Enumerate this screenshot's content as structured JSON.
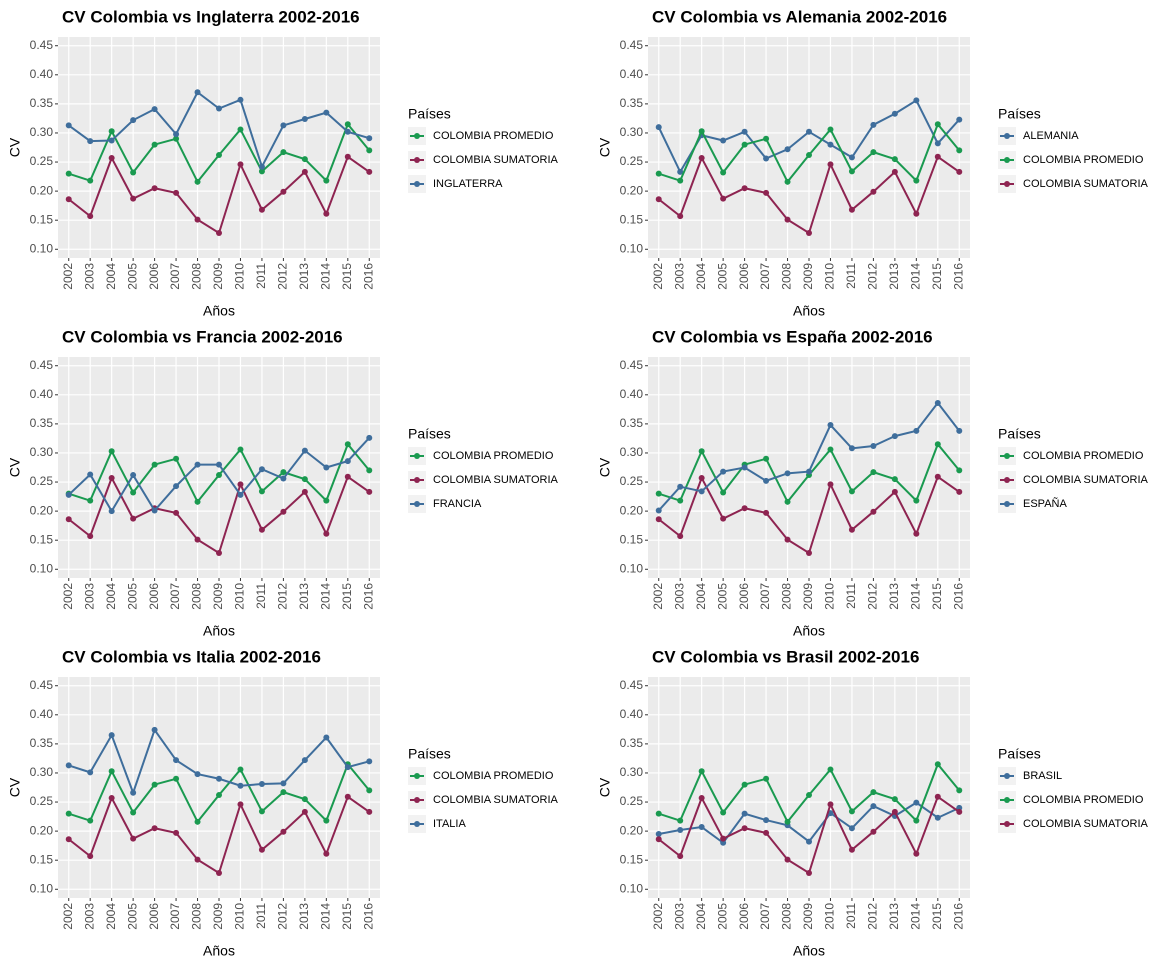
{
  "chart_data": [
    {
      "type": "line",
      "title": "CV Colombia vs Inglaterra 2002-2016",
      "x_label": "Años",
      "y_label": "CV",
      "legend_title": "Países",
      "legend": "right",
      "grid": true,
      "categories": [
        "2002",
        "2003",
        "2004",
        "2005",
        "2006",
        "2007",
        "2008",
        "2009",
        "2010",
        "2011",
        "2012",
        "2013",
        "2014",
        "2015",
        "2016"
      ],
      "ylim": [
        0.085,
        0.465
      ],
      "yticks": [
        {
          "value": 0.1,
          "label": "0.10"
        },
        0.15,
        {
          "value": 0.2,
          "label": "0.20"
        },
        0.25,
        {
          "value": 0.3,
          "label": "0.30"
        },
        0.35,
        {
          "value": 0.4,
          "label": "0.40"
        },
        0.45
      ],
      "series": [
        {
          "name": "COLOMBIA PROMEDIO",
          "color": "#1a9a50",
          "values": [
            0.23,
            0.218,
            0.303,
            0.232,
            0.28,
            0.29,
            0.216,
            0.262,
            0.306,
            0.234,
            0.267,
            0.255,
            0.218,
            0.315,
            0.27
          ]
        },
        {
          "name": "COLOMBIA SUMATORIA",
          "color": "#8e2451",
          "values": [
            0.186,
            0.157,
            0.257,
            0.187,
            0.205,
            0.197,
            0.151,
            0.128,
            0.246,
            0.168,
            0.199,
            0.233,
            0.161,
            0.259,
            0.233
          ]
        },
        {
          "name": "INGLATERRA",
          "color": "#3f6e9c",
          "values": [
            0.313,
            0.286,
            0.287,
            0.322,
            0.341,
            0.298,
            0.37,
            0.342,
            0.357,
            0.242,
            0.313,
            0.324,
            0.335,
            0.302,
            0.291
          ]
        }
      ]
    },
    {
      "type": "line",
      "title": "CV Colombia vs Alemania 2002-2016",
      "x_label": "Años",
      "y_label": "CV",
      "legend_title": "Países",
      "legend": "right",
      "grid": true,
      "categories": [
        "2002",
        "2003",
        "2004",
        "2005",
        "2006",
        "2007",
        "2008",
        "2009",
        "2010",
        "2011",
        "2012",
        "2013",
        "2014",
        "2015",
        "2016"
      ],
      "ylim": [
        0.085,
        0.465
      ],
      "yticks": [
        {
          "value": 0.1,
          "label": "0.10"
        },
        0.15,
        {
          "value": 0.2,
          "label": "0.20"
        },
        0.25,
        {
          "value": 0.3,
          "label": "0.30"
        },
        0.35,
        {
          "value": 0.4,
          "label": "0.40"
        },
        0.45
      ],
      "series": [
        {
          "name": "ALEMANIA",
          "color": "#3f6e9c",
          "values": [
            0.31,
            0.233,
            0.296,
            0.287,
            0.302,
            0.256,
            0.272,
            0.302,
            0.28,
            0.258,
            0.314,
            0.333,
            0.356,
            0.282,
            0.323
          ]
        },
        {
          "name": "COLOMBIA PROMEDIO",
          "color": "#1a9a50",
          "values": [
            0.23,
            0.218,
            0.303,
            0.232,
            0.28,
            0.29,
            0.216,
            0.262,
            0.306,
            0.234,
            0.267,
            0.255,
            0.218,
            0.315,
            0.27
          ]
        },
        {
          "name": "COLOMBIA SUMATORIA",
          "color": "#8e2451",
          "values": [
            0.186,
            0.157,
            0.257,
            0.187,
            0.205,
            0.197,
            0.151,
            0.128,
            0.246,
            0.168,
            0.199,
            0.233,
            0.161,
            0.259,
            0.233
          ]
        }
      ]
    },
    {
      "type": "line",
      "title": "CV Colombia vs Francia 2002-2016",
      "x_label": "Años",
      "y_label": "CV",
      "legend_title": "Países",
      "legend": "right",
      "grid": true,
      "categories": [
        "2002",
        "2003",
        "2004",
        "2005",
        "2006",
        "2007",
        "2008",
        "2009",
        "2010",
        "2011",
        "2012",
        "2013",
        "2014",
        "2015",
        "2016"
      ],
      "ylim": [
        0.085,
        0.465
      ],
      "yticks": [
        {
          "value": 0.1,
          "label": "0.10"
        },
        0.15,
        {
          "value": 0.2,
          "label": "0.20"
        },
        0.25,
        {
          "value": 0.3,
          "label": "0.30"
        },
        0.35,
        {
          "value": 0.4,
          "label": "0.40"
        },
        0.45
      ],
      "series": [
        {
          "name": "COLOMBIA PROMEDIO",
          "color": "#1a9a50",
          "values": [
            0.23,
            0.218,
            0.303,
            0.232,
            0.28,
            0.29,
            0.216,
            0.262,
            0.306,
            0.234,
            0.267,
            0.255,
            0.218,
            0.315,
            0.27
          ]
        },
        {
          "name": "COLOMBIA SUMATORIA",
          "color": "#8e2451",
          "values": [
            0.186,
            0.157,
            0.257,
            0.187,
            0.205,
            0.197,
            0.151,
            0.128,
            0.246,
            0.168,
            0.199,
            0.233,
            0.161,
            0.259,
            0.233
          ]
        },
        {
          "name": "FRANCIA",
          "color": "#3f6e9c",
          "values": [
            0.228,
            0.263,
            0.2,
            0.262,
            0.201,
            0.243,
            0.28,
            0.28,
            0.228,
            0.272,
            0.256,
            0.304,
            0.275,
            0.286,
            0.326
          ]
        }
      ]
    },
    {
      "type": "line",
      "title": "CV Colombia vs España 2002-2016",
      "x_label": "Años",
      "y_label": "CV",
      "legend_title": "Países",
      "legend": "right",
      "grid": true,
      "categories": [
        "2002",
        "2003",
        "2004",
        "2005",
        "2006",
        "2007",
        "2008",
        "2009",
        "2010",
        "2011",
        "2012",
        "2013",
        "2014",
        "2015",
        "2016"
      ],
      "ylim": [
        0.085,
        0.465
      ],
      "yticks": [
        {
          "value": 0.1,
          "label": "0.10"
        },
        0.15,
        {
          "value": 0.2,
          "label": "0.20"
        },
        0.25,
        {
          "value": 0.3,
          "label": "0.30"
        },
        0.35,
        {
          "value": 0.4,
          "label": "0.40"
        },
        0.45
      ],
      "series": [
        {
          "name": "COLOMBIA PROMEDIO",
          "color": "#1a9a50",
          "values": [
            0.23,
            0.218,
            0.303,
            0.232,
            0.28,
            0.29,
            0.216,
            0.262,
            0.306,
            0.234,
            0.267,
            0.255,
            0.218,
            0.315,
            0.27
          ]
        },
        {
          "name": "COLOMBIA SUMATORIA",
          "color": "#8e2451",
          "values": [
            0.186,
            0.157,
            0.257,
            0.187,
            0.205,
            0.197,
            0.151,
            0.128,
            0.246,
            0.168,
            0.199,
            0.233,
            0.161,
            0.259,
            0.233
          ]
        },
        {
          "name": "ESPAÑA",
          "color": "#3f6e9c",
          "values": [
            0.201,
            0.242,
            0.234,
            0.268,
            0.275,
            0.252,
            0.265,
            0.268,
            0.348,
            0.308,
            0.312,
            0.329,
            0.338,
            0.386,
            0.338
          ]
        }
      ]
    },
    {
      "type": "line",
      "title": "CV Colombia vs Italia 2002-2016",
      "x_label": "Años",
      "y_label": "CV",
      "legend_title": "Países",
      "legend": "right",
      "grid": true,
      "categories": [
        "2002",
        "2003",
        "2004",
        "2005",
        "2006",
        "2007",
        "2008",
        "2009",
        "2010",
        "2011",
        "2012",
        "2013",
        "2014",
        "2015",
        "2016"
      ],
      "ylim": [
        0.085,
        0.465
      ],
      "yticks": [
        {
          "value": 0.1,
          "label": "0.10"
        },
        0.15,
        {
          "value": 0.2,
          "label": "0.20"
        },
        0.25,
        {
          "value": 0.3,
          "label": "0.30"
        },
        0.35,
        {
          "value": 0.4,
          "label": "0.40"
        },
        0.45
      ],
      "series": [
        {
          "name": "COLOMBIA PROMEDIO",
          "color": "#1a9a50",
          "values": [
            0.23,
            0.218,
            0.303,
            0.232,
            0.28,
            0.29,
            0.216,
            0.262,
            0.306,
            0.234,
            0.267,
            0.255,
            0.218,
            0.315,
            0.27
          ]
        },
        {
          "name": "COLOMBIA SUMATORIA",
          "color": "#8e2451",
          "values": [
            0.186,
            0.157,
            0.257,
            0.187,
            0.205,
            0.197,
            0.151,
            0.128,
            0.246,
            0.168,
            0.199,
            0.233,
            0.161,
            0.259,
            0.233
          ]
        },
        {
          "name": "ITALIA",
          "color": "#3f6e9c",
          "values": [
            0.313,
            0.301,
            0.365,
            0.266,
            0.374,
            0.322,
            0.298,
            0.29,
            0.278,
            0.281,
            0.282,
            0.322,
            0.361,
            0.31,
            0.32
          ]
        }
      ]
    },
    {
      "type": "line",
      "title": "CV Colombia vs Brasil 2002-2016",
      "x_label": "Años",
      "y_label": "CV",
      "legend_title": "Países",
      "legend": "right",
      "grid": true,
      "categories": [
        "2002",
        "2003",
        "2004",
        "2005",
        "2006",
        "2007",
        "2008",
        "2009",
        "2010",
        "2011",
        "2012",
        "2013",
        "2014",
        "2015",
        "2016"
      ],
      "ylim": [
        0.085,
        0.465
      ],
      "yticks": [
        {
          "value": 0.1,
          "label": "0.10"
        },
        0.15,
        {
          "value": 0.2,
          "label": "0.20"
        },
        0.25,
        {
          "value": 0.3,
          "label": "0.30"
        },
        0.35,
        {
          "value": 0.4,
          "label": "0.40"
        },
        0.45
      ],
      "series": [
        {
          "name": "BRASIL",
          "color": "#3f6e9c",
          "values": [
            0.195,
            0.202,
            0.207,
            0.18,
            0.23,
            0.219,
            0.21,
            0.182,
            0.231,
            0.205,
            0.243,
            0.226,
            0.249,
            0.223,
            0.24
          ]
        },
        {
          "name": "COLOMBIA PROMEDIO",
          "color": "#1a9a50",
          "values": [
            0.23,
            0.218,
            0.303,
            0.232,
            0.28,
            0.29,
            0.216,
            0.262,
            0.306,
            0.234,
            0.267,
            0.255,
            0.218,
            0.315,
            0.27
          ]
        },
        {
          "name": "COLOMBIA SUMATORIA",
          "color": "#8e2451",
          "values": [
            0.186,
            0.157,
            0.257,
            0.187,
            0.205,
            0.197,
            0.151,
            0.128,
            0.246,
            0.168,
            0.199,
            0.233,
            0.161,
            0.259,
            0.233
          ]
        }
      ]
    }
  ]
}
